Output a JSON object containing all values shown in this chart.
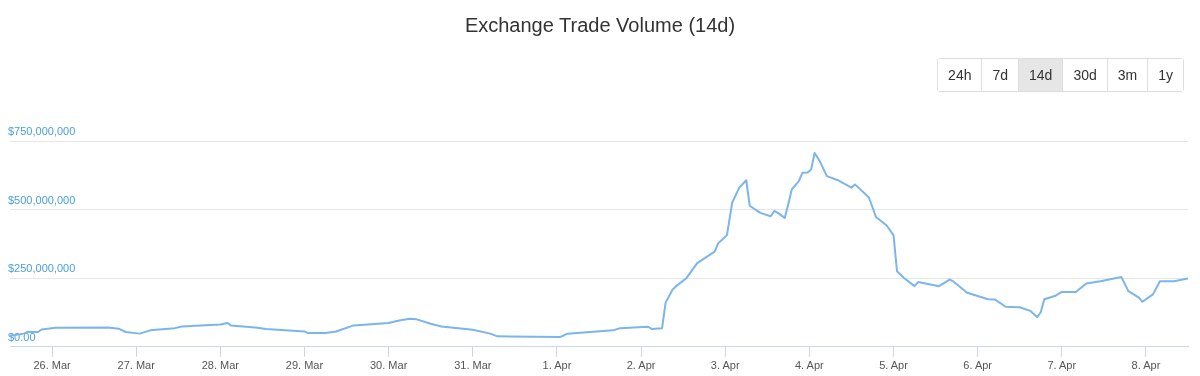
{
  "chart_data": {
    "type": "line",
    "title": "Exchange Trade Volume (14d)",
    "annotations": [
      "24h",
      "7d",
      "14d",
      "30d",
      "3m",
      "1y"
    ],
    "x": [
      "--03-25T12:00",
      "--03-25T16:00",
      "--03-25T17:00",
      "--03-25T20:00",
      "--03-25T21:00",
      "--03-26T01:00",
      "--03-26T16:00",
      "--03-26T19:00",
      "--03-26T21:00",
      "--03-27T01:00",
      "--03-27T04:00",
      "--03-27T11:00",
      "--03-27T13:00",
      "--03-28T00:00",
      "--03-28T02:00",
      "--03-28T03:00",
      "--03-28T10:00",
      "--03-28T13:00",
      "--03-29T00:00",
      "--03-29T01:00",
      "--03-29T06:00",
      "--03-29T09:00",
      "--03-29T14:00",
      "--03-30T00:00",
      "--03-30T03:00",
      "--03-30T06:00",
      "--03-30T08:00",
      "--03-30T12:00",
      "--03-30T15:00",
      "--03-31T00:00",
      "--03-31T05:00",
      "--03-31T07:00",
      "--04-01T01:00",
      "--04-01T03:00",
      "--04-01T16:00",
      "--04-01T18:00",
      "--04-02T02:00",
      "--04-02T03:00",
      "--04-02T06:00",
      "--04-02T07:00",
      "--04-02T09:00",
      "--04-02T10:00",
      "--04-02T13:00",
      "--04-02T16:00",
      "--04-02T21:00",
      "--04-02T22:00",
      "--04-03T00:30",
      "--04-03T02:00",
      "--04-03T04:00",
      "--04-03T06:00",
      "--04-03T07:00",
      "--04-03T10:00",
      "--04-03T13:00",
      "--04-03T14:00",
      "--04-03T15:00",
      "--04-03T17:00",
      "--04-03T18:00",
      "--04-03T19:00",
      "--04-03T21:00",
      "--04-03T22:00",
      "--04-03T23:30",
      "--04-04T00:30",
      "--04-04T01:30",
      "--04-04T03:00",
      "--04-04T05:00",
      "--04-04T08:00",
      "--04-04T12:00",
      "--04-04T13:00",
      "--04-04T17:00",
      "--04-04T19:00",
      "--04-04T22:00",
      "--04-05T00:00",
      "--04-05T01:00",
      "--04-05T03:00",
      "--04-05T06:00",
      "--04-05T07:00",
      "--04-05T13:00",
      "--04-05T16:00",
      "--04-05T17:00",
      "--04-05T21:00",
      "--04-06T03:00",
      "--04-06T05:00",
      "--04-06T08:00",
      "--04-06T12:00",
      "--04-06T15:00",
      "--04-06T17:00",
      "--04-06T18:00",
      "--04-06T19:00",
      "--04-06T22:00",
      "--04-07T00:00",
      "--04-07T04:00",
      "--04-07T07:00",
      "--04-07T11:00",
      "--04-07T17:00",
      "--04-07T19:00",
      "--04-07T22:00",
      "--04-07T23:00",
      "--04-08T02:00",
      "--04-08T04:00",
      "--04-08T08:00",
      "--04-08T12:00"
    ],
    "series": [
      {
        "color": "#7cb5ec",
        "values": [
          40000000,
          48000000,
          54000000,
          54000000,
          63000000,
          69000000,
          70000000,
          66000000,
          54000000,
          48000000,
          60000000,
          68000000,
          74000000,
          81000000,
          87000000,
          78000000,
          70000000,
          65000000,
          56000000,
          50000000,
          50000000,
          56000000,
          78000000,
          87000000,
          96000000,
          102000000,
          100000000,
          84000000,
          74000000,
          62000000,
          48000000,
          38000000,
          36000000,
          48000000,
          60000000,
          68000000,
          73000000,
          65000000,
          68000000,
          161000000,
          209000000,
          221000000,
          251000000,
          305000000,
          347000000,
          377000000,
          407000000,
          526000000,
          580000000,
          607000000,
          514000000,
          488000000,
          476000000,
          495000000,
          488000000,
          470000000,
          520000000,
          574000000,
          604000000,
          634000000,
          635000000,
          646000000,
          706000000,
          676000000,
          622000000,
          608000000,
          580000000,
          592000000,
          544000000,
          473000000,
          443000000,
          407000000,
          275000000,
          251000000,
          221000000,
          236000000,
          221000000,
          245000000,
          239000000,
          197000000,
          173000000,
          172000000,
          146000000,
          144000000,
          131000000,
          108000000,
          126000000,
          173000000,
          185000000,
          200000000,
          200000000,
          231000000,
          239000000,
          254000000,
          203000000,
          179000000,
          164000000,
          191000000,
          239000000,
          239000000,
          249000000
        ]
      }
    ],
    "xlim": [
      "--03-25T12:00",
      "--04-08T12:00"
    ],
    "xticks": [
      {
        "value": "--03-26",
        "label": "26. Mar"
      },
      {
        "value": "--03-27",
        "label": "27. Mar"
      },
      {
        "value": "--03-28",
        "label": "28. Mar"
      },
      {
        "value": "--03-29",
        "label": "29. Mar"
      },
      {
        "value": "--03-30",
        "label": "30. Mar"
      },
      {
        "value": "--03-31",
        "label": "31. Mar"
      },
      {
        "value": "--04-01",
        "label": "1. Apr"
      },
      {
        "value": "--04-02",
        "label": "2. Apr"
      },
      {
        "value": "--04-03",
        "label": "3. Apr"
      },
      {
        "value": "--04-04",
        "label": "4. Apr"
      },
      {
        "value": "--04-05",
        "label": "5. Apr"
      },
      {
        "value": "--04-06",
        "label": "6. Apr"
      },
      {
        "value": "--04-07",
        "label": "7. Apr"
      },
      {
        "value": "--04-08",
        "label": "8. Apr"
      }
    ],
    "ylim": [
      0,
      750000000
    ],
    "yticks": [
      {
        "value": 0,
        "label": "$0.00"
      },
      {
        "value": 250000000,
        "label": "$250,000,000"
      },
      {
        "value": 500000000,
        "label": "$500,000,000"
      },
      {
        "value": 750000000,
        "label": "$750,000,000"
      }
    ],
    "grid": "y",
    "legend": false,
    "marker": "none",
    "line_style": "solid"
  }
}
